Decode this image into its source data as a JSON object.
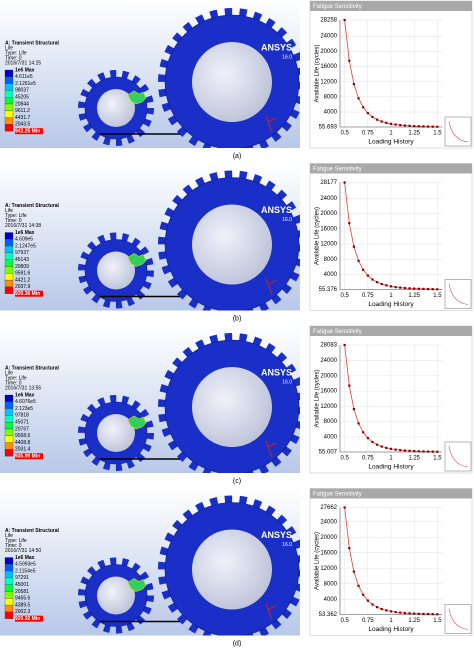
{
  "panels": [
    {
      "caption": "(a)",
      "simulation": {
        "title": "A: Transient Structural",
        "subtitle": "Life",
        "result_type": "Type: Life",
        "time": "Time: 0",
        "date": "2016/7/31 14:25",
        "legend": [
          "1e6 Max",
          "4.611e5",
          "2.1261e5",
          "98037",
          "45205",
          "20844",
          "9611.2",
          "4431.7",
          "2043.5",
          "942.25 Min"
        ],
        "legend_colors": [
          "#0000c8",
          "#0060ff",
          "#00c0ff",
          "#00ffc0",
          "#00ff40",
          "#80ff00",
          "#ffff00",
          "#ff9000",
          "#ff0000"
        ],
        "logo": "ANSYS",
        "version": "16.0"
      },
      "chart_data": {
        "type": "line",
        "title": "Fatigue Sensitivity",
        "x_label": "Loading History",
        "y_label": "Available Life (cycles)",
        "x": [
          0.5,
          0.55,
          0.6,
          0.65,
          0.7,
          0.75,
          0.8,
          0.85,
          0.9,
          0.95,
          1.0,
          1.05,
          1.1,
          1.15,
          1.2,
          1.25,
          1.3,
          1.35,
          1.4,
          1.45,
          1.5
        ],
        "values": [
          28258,
          17545,
          11357,
          7610,
          5254,
          3722,
          2696,
          1992,
          1495,
          1142,
          883,
          691,
          547,
          437,
          355,
          289,
          238,
          198,
          165,
          139,
          116
        ],
        "color": "#e04040",
        "marker_color": "#8b0000",
        "xlim": [
          0.45,
          1.55
        ],
        "xticks": [
          0.5,
          0.75,
          1,
          1.25,
          1.5
        ],
        "ylim": [
          55.693,
          28258
        ],
        "yticks": [
          55.693,
          4000,
          8000,
          12000,
          16000,
          20000,
          24000,
          28258
        ],
        "grid": true
      }
    },
    {
      "caption": "(b)",
      "simulation": {
        "title": "A: Transient Structural",
        "subtitle": "Life",
        "result_type": "Type: Life",
        "time": "Time: 0",
        "date": "2016/7/31 14:38",
        "legend": [
          "1e6 Max",
          "4.609e5",
          "2.1247e5",
          "97937",
          "45143",
          "20809",
          "9591.6",
          "4421.2",
          "2037.9",
          "939.36 Min"
        ],
        "legend_colors": [
          "#0000c8",
          "#0060ff",
          "#00c0ff",
          "#00ffc0",
          "#00ff40",
          "#80ff00",
          "#ffff00",
          "#ff9000",
          "#ff0000"
        ],
        "logo": "ANSYS",
        "version": "16.0"
      },
      "chart_data": {
        "type": "line",
        "title": "Fatigue Sensitivity",
        "x_label": "Loading History",
        "y_label": "Available Life (cycles)",
        "x": [
          0.5,
          0.55,
          0.6,
          0.65,
          0.7,
          0.75,
          0.8,
          0.85,
          0.9,
          0.95,
          1.0,
          1.05,
          1.1,
          1.15,
          1.2,
          1.25,
          1.3,
          1.35,
          1.4,
          1.45,
          1.5
        ],
        "values": [
          28177,
          17494,
          11324,
          7588,
          5239,
          3711,
          2688,
          1986,
          1491,
          1139,
          880,
          689,
          545,
          436,
          354,
          288,
          237,
          197,
          165,
          139,
          116
        ],
        "color": "#e04040",
        "marker_color": "#8b0000",
        "xlim": [
          0.45,
          1.55
        ],
        "xticks": [
          0.5,
          0.75,
          1,
          1.25,
          1.5
        ],
        "ylim": [
          55.376,
          28177
        ],
        "yticks": [
          55.376,
          4000,
          8000,
          12000,
          16000,
          20000,
          24000,
          28177
        ],
        "grid": true
      }
    },
    {
      "caption": "(c)",
      "simulation": {
        "title": "A: Transient Structural",
        "subtitle": "Life",
        "result_type": "Type: Life",
        "time": "Time: 0",
        "date": "2016/7/31 13:55",
        "legend": [
          "1e6 Max",
          "4.6076e5",
          "2.123e5",
          "97818",
          "45071",
          "20767",
          "9568.6",
          "4408.8",
          "2031.4",
          "935.99 Min"
        ],
        "legend_colors": [
          "#0000c8",
          "#0060ff",
          "#00c0ff",
          "#00ffc0",
          "#00ff40",
          "#80ff00",
          "#ffff00",
          "#ff9000",
          "#ff0000"
        ],
        "logo": "ANSYS",
        "version": "16.0"
      },
      "chart_data": {
        "type": "line",
        "title": "Fatigue Sensitivity",
        "x_label": "Loading History",
        "y_label": "Available Life (cycles)",
        "x": [
          0.5,
          0.55,
          0.6,
          0.65,
          0.7,
          0.75,
          0.8,
          0.85,
          0.9,
          0.95,
          1.0,
          1.05,
          1.1,
          1.15,
          1.2,
          1.25,
          1.3,
          1.35,
          1.4,
          1.45,
          1.5
        ],
        "values": [
          28083,
          17436,
          11287,
          7563,
          5221,
          3699,
          2679,
          1980,
          1486,
          1135,
          878,
          687,
          544,
          434,
          353,
          287,
          237,
          197,
          164,
          138,
          115
        ],
        "color": "#e04040",
        "marker_color": "#8b0000",
        "xlim": [
          0.45,
          1.55
        ],
        "xticks": [
          0.5,
          0.75,
          1,
          1.25,
          1.5
        ],
        "ylim": [
          55.007,
          28083
        ],
        "yticks": [
          55.007,
          4000,
          8000,
          12000,
          16000,
          20000,
          24000,
          28083
        ],
        "grid": true
      }
    },
    {
      "caption": "(d)",
      "simulation": {
        "title": "A: Transient Structural",
        "subtitle": "Life",
        "result_type": "Type: Life",
        "time": "Time: 0",
        "date": "2016/7/31 14:50",
        "legend": [
          "1e6 Max",
          "4.5993e5",
          "2.1154e5",
          "97291",
          "45001",
          "20581",
          "9465.6",
          "4389.5",
          "2002.3",
          "920.92 Min"
        ],
        "legend_colors": [
          "#0000c8",
          "#0060ff",
          "#00c0ff",
          "#00ffc0",
          "#00ff40",
          "#80ff00",
          "#ffff00",
          "#ff9000",
          "#ff0000"
        ],
        "logo": "ANSYS",
        "version": "16.0"
      },
      "chart_data": {
        "type": "line",
        "title": "Fatigue Sensitivity",
        "x_label": "Loading History",
        "y_label": "Available Life (cycles)",
        "x": [
          0.5,
          0.55,
          0.6,
          0.65,
          0.7,
          0.75,
          0.8,
          0.85,
          0.9,
          0.95,
          1.0,
          1.05,
          1.1,
          1.15,
          1.2,
          1.25,
          1.3,
          1.35,
          1.4,
          1.45,
          1.5
        ],
        "values": [
          27662,
          17175,
          11117,
          7449,
          5143,
          3643,
          2639,
          1950,
          1463,
          1118,
          864,
          676,
          535,
          428,
          348,
          283,
          233,
          194,
          162,
          136,
          114
        ],
        "color": "#e04040",
        "marker_color": "#8b0000",
        "xlim": [
          0.45,
          1.55
        ],
        "xticks": [
          0.5,
          0.75,
          1,
          1.25,
          1.5
        ],
        "ylim": [
          53.362,
          27662
        ],
        "yticks": [
          53.362,
          4000,
          8000,
          12000,
          16000,
          20000,
          24000,
          27662
        ],
        "grid": true
      }
    }
  ]
}
